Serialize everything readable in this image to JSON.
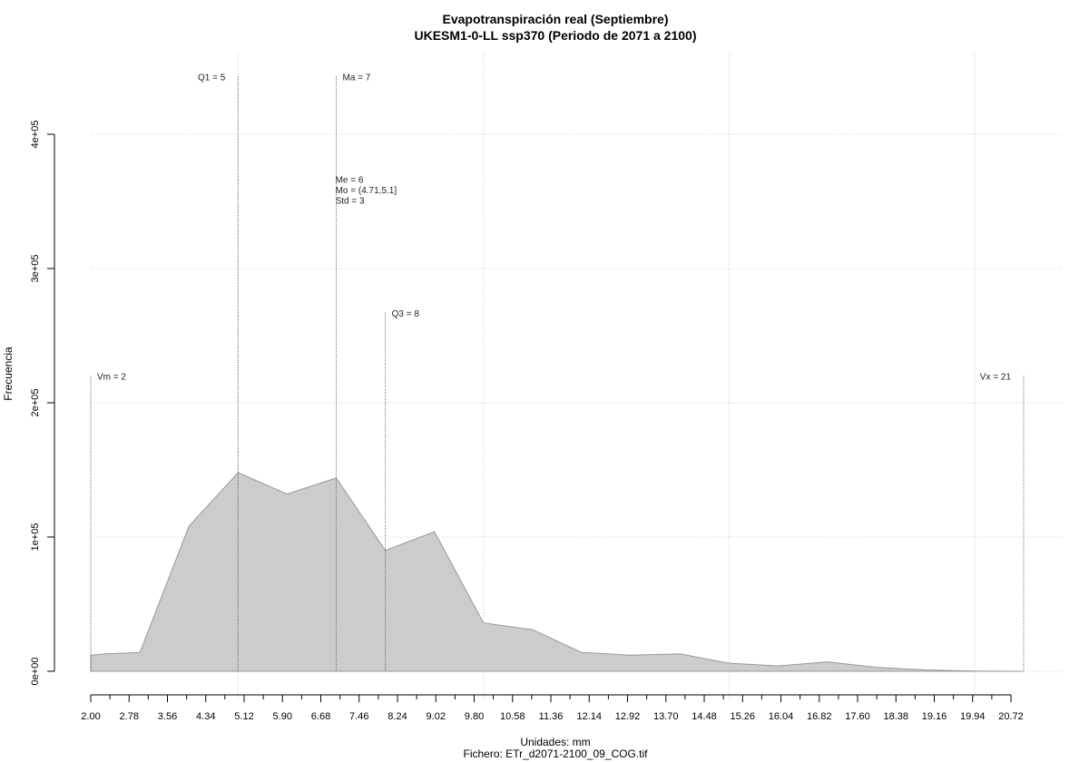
{
  "chart_data": {
    "type": "area",
    "title": "Evapotranspiración real (Septiembre)",
    "subtitle": "UKESM1-0-LL ssp370 (Periodo de 2071 a 2100)",
    "xlabel": "Unidades: mm",
    "caption": "Fichero: ETr_d2071-2100_09_COG.tif",
    "ylabel": "Frecuencia",
    "xlim": [
      2.0,
      21.0
    ],
    "ylim": [
      0,
      400000
    ],
    "x_tick_labels": [
      "2.00",
      "2.78",
      "3.56",
      "4.34",
      "5.12",
      "5.90",
      "6.68",
      "7.46",
      "8.24",
      "9.02",
      "9.80",
      "10.58",
      "11.36",
      "12.14",
      "12.92",
      "13.70",
      "14.48",
      "15.26",
      "16.04",
      "16.82",
      "17.60",
      "18.38",
      "19.16",
      "19.94",
      "20.72"
    ],
    "y_ticks": [
      0,
      100000,
      200000,
      300000,
      400000
    ],
    "y_tick_labels": [
      "0e+00",
      "1e+05",
      "2e+05",
      "3e+05",
      "4e+05"
    ],
    "grid": true,
    "fill_color": "#cccccc",
    "line_color": "#999999",
    "series": [
      {
        "x": [
          2.0,
          2.3,
          3.0,
          4.0,
          5.0,
          6.0,
          7.0,
          8.0,
          9.0,
          10.0,
          11.0,
          12.0,
          13.0,
          14.0,
          15.0,
          16.0,
          17.0,
          18.0,
          19.0,
          20.0,
          21.0
        ],
        "y": [
          12000,
          13000,
          14000,
          108000,
          148000,
          132000,
          144000,
          90000,
          104000,
          36000,
          31000,
          14000,
          12000,
          13000,
          6000,
          4000,
          7000,
          3000,
          1000,
          200,
          0
        ]
      }
    ],
    "markers": [
      {
        "label": "Vm = 2",
        "x": 2.0,
        "height": 220000,
        "side": "right"
      },
      {
        "label": "Q1 = 5",
        "x": 5.0,
        "height": 443000,
        "side": "left"
      },
      {
        "label": "Ma = 7",
        "x": 7.0,
        "height": 443000,
        "side": "right"
      },
      {
        "label": "Q3 = 8",
        "x": 8.0,
        "height": 267000,
        "side": "right"
      },
      {
        "label": "Vx = 21",
        "x": 21.0,
        "height": 220000,
        "side": "left"
      }
    ],
    "stats_text": [
      "Me = 6",
      "Mo = (4.71,5.1]",
      "Std = 3"
    ],
    "stats_anchor": {
      "x": 7.5,
      "y": 364000
    }
  }
}
